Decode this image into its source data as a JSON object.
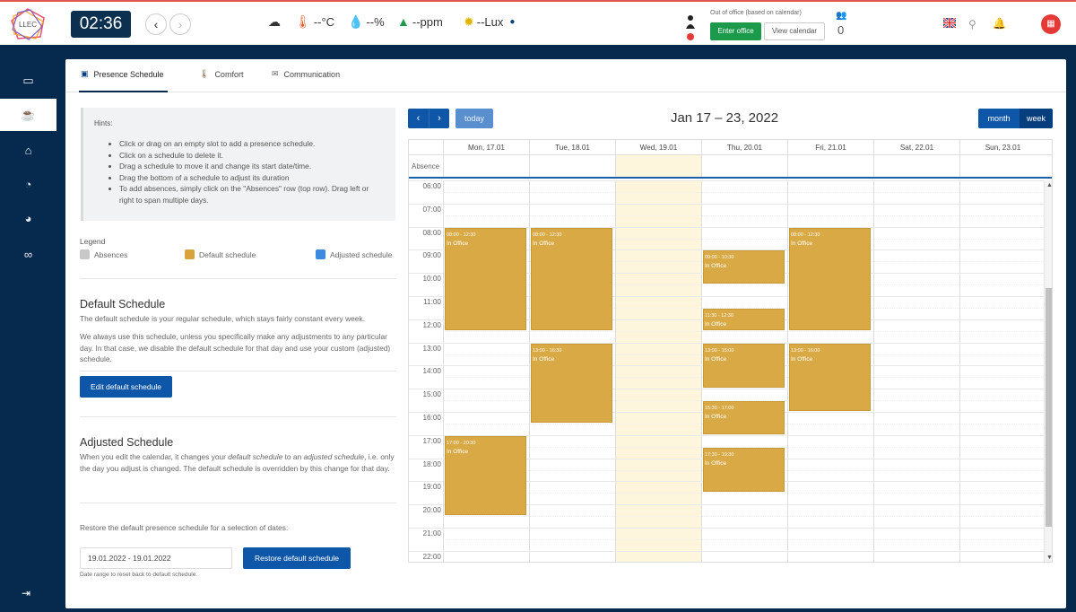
{
  "header": {
    "logo_text": "LLEC",
    "clock": "02:36",
    "sensors": [
      {
        "icon": "weather-icon",
        "value": ""
      },
      {
        "icon": "thermometer-icon",
        "value": "--°C"
      },
      {
        "icon": "humidity-icon",
        "value": "--%"
      },
      {
        "icon": "co2-tree-icon",
        "value": "--ppm"
      },
      {
        "icon": "sun-icon",
        "value": "--Lux"
      }
    ],
    "out_of_office_label": "Out of office (based on calendar)",
    "enter_office_label": "Enter office",
    "view_calendar_label": "View calendar",
    "users_count": "0"
  },
  "tabs": [
    {
      "label": "Presence Schedule"
    },
    {
      "label": "Comfort"
    },
    {
      "label": "Communication"
    }
  ],
  "hints": {
    "title": "Hints:",
    "items": [
      "Click or drag on an empty slot to add a presence schedule.",
      "Click on a schedule to delete it.",
      "Drag a schedule to move it and change its start date/time.",
      "Drag the bottom of a schedule to adjust its duration",
      "To add absences, simply click on the \"Absences\" row (top row). Drag left or right to span multiple days."
    ]
  },
  "legend": {
    "title": "Legend",
    "items": [
      {
        "label": "Absences",
        "color": "#c8c8c8"
      },
      {
        "label": "Default schedule",
        "color": "#d9a23a"
      },
      {
        "label": "Adjusted schedule",
        "color": "#3d8be0"
      }
    ]
  },
  "default_schedule": {
    "title": "Default Schedule",
    "text1": "The default schedule is your regular schedule, which stays fairly constant every week.",
    "text2": "We always use this schedule, unless you specifically make any adjustments to any particular day. In that case, we disable the default schedule for that day and use your custom (adjusted) schedule.",
    "button": "Edit default schedule"
  },
  "adjusted_schedule": {
    "title": "Adjusted Schedule",
    "text_a": "When you edit the calendar, it changes your ",
    "text_em1": "default schedule",
    "text_b": " to an ",
    "text_em2": "adjusted schedule",
    "text_c": ", i.e. only the day you adjust is changed. The default schedule is overridden by this change for that day."
  },
  "restore": {
    "label": "Restore the default presence schedule for a selection of dates:",
    "range_value": "19.01.2022 - 19.01.2022",
    "button": "Restore default schedule",
    "hint": "Date range to reset back to default schedule."
  },
  "calendar": {
    "title": "Jan 17 – 23, 2022",
    "today_label": "today",
    "month_label": "month",
    "week_label": "week",
    "absence_label": "Absence",
    "days": [
      "Mon, 17.01",
      "Tue, 18.01",
      "Wed, 19.01",
      "Thu, 20.01",
      "Fri, 21.01",
      "Sat, 22.01",
      "Sun, 23.01"
    ],
    "today_index": 2,
    "hours": [
      "06:00",
      "07:00",
      "08:00",
      "09:00",
      "10:00",
      "11:00",
      "12:00",
      "13:00",
      "14:00",
      "15:00",
      "16:00",
      "17:00",
      "18:00",
      "19:00",
      "20:00",
      "21:00",
      "22:00"
    ],
    "events": [
      {
        "day": 0,
        "start": "08:00",
        "end": "12:30",
        "time_label": "08:00 - 12:30",
        "title": "In Office"
      },
      {
        "day": 0,
        "start": "17:00",
        "end": "20:30",
        "time_label": "17:00 - 20:30",
        "title": "In Office"
      },
      {
        "day": 1,
        "start": "08:00",
        "end": "12:30",
        "time_label": "08:00 - 12:30",
        "title": "In Office"
      },
      {
        "day": 1,
        "start": "13:00",
        "end": "16:30",
        "time_label": "13:00 - 16:30",
        "title": "In Office"
      },
      {
        "day": 3,
        "start": "09:00",
        "end": "10:30",
        "time_label": "09:00 - 10:30",
        "title": "In Office"
      },
      {
        "day": 3,
        "start": "11:30",
        "end": "12:30",
        "time_label": "11:30 - 12:30",
        "title": "In Office"
      },
      {
        "day": 3,
        "start": "13:00",
        "end": "15:00",
        "time_label": "13:00 - 15:00",
        "title": "In Office"
      },
      {
        "day": 3,
        "start": "15:30",
        "end": "17:00",
        "time_label": "15:30 - 17:00",
        "title": "In Office"
      },
      {
        "day": 3,
        "start": "17:30",
        "end": "19:30",
        "time_label": "17:30 - 19:30",
        "title": "In Office"
      },
      {
        "day": 4,
        "start": "08:00",
        "end": "12:30",
        "time_label": "08:00 - 12:30",
        "title": "In Office"
      },
      {
        "day": 4,
        "start": "13:00",
        "end": "16:00",
        "time_label": "13:00 - 16:00",
        "title": "In Office"
      }
    ]
  }
}
